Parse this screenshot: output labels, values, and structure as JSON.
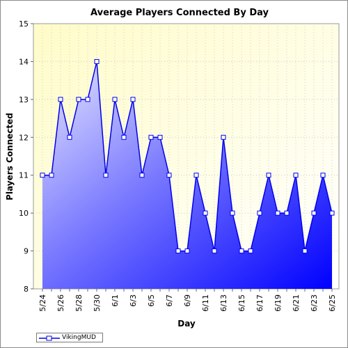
{
  "chart_data": {
    "type": "area",
    "title": "Average Players Connected By Day",
    "xlabel": "Day",
    "ylabel": "Players Connected",
    "ylim": [
      8,
      15
    ],
    "yticks": [
      8,
      9,
      10,
      11,
      12,
      13,
      14,
      15
    ],
    "x": [
      "5/24",
      "5/25",
      "5/26",
      "5/27",
      "5/28",
      "5/29",
      "5/30",
      "5/31",
      "6/1",
      "6/2",
      "6/3",
      "6/4",
      "6/5",
      "6/6",
      "6/7",
      "6/8",
      "6/9",
      "6/10",
      "6/11",
      "6/12",
      "6/13",
      "6/14",
      "6/15",
      "6/16",
      "6/17",
      "6/18",
      "6/19",
      "6/20",
      "6/21",
      "6/22",
      "6/23",
      "6/24",
      "6/25"
    ],
    "xtick_labels": [
      "5/24",
      "5/26",
      "5/28",
      "5/30",
      "6/1",
      "6/3",
      "6/5",
      "6/7",
      "6/9",
      "6/11",
      "6/13",
      "6/15",
      "6/17",
      "6/19",
      "6/21",
      "6/23",
      "6/25"
    ],
    "series": [
      {
        "name": "VikingMUD",
        "values": [
          11,
          11,
          13,
          12,
          13,
          13,
          14,
          11,
          13,
          12,
          13,
          11,
          12,
          12,
          11,
          9,
          9,
          11,
          10,
          9,
          12,
          10,
          9,
          9,
          10,
          11,
          10,
          10,
          11,
          9,
          10,
          11,
          10
        ]
      }
    ],
    "grid": true,
    "legend_position": "bottom-left",
    "colors": {
      "plot_bg_top": "#ffffd8",
      "plot_bg_bottom": "#ffffff",
      "line": "#0000ff",
      "fill_light": "#d8d8ff",
      "fill_dark": "#0000ff",
      "marker_fill": "#ffffff"
    }
  }
}
